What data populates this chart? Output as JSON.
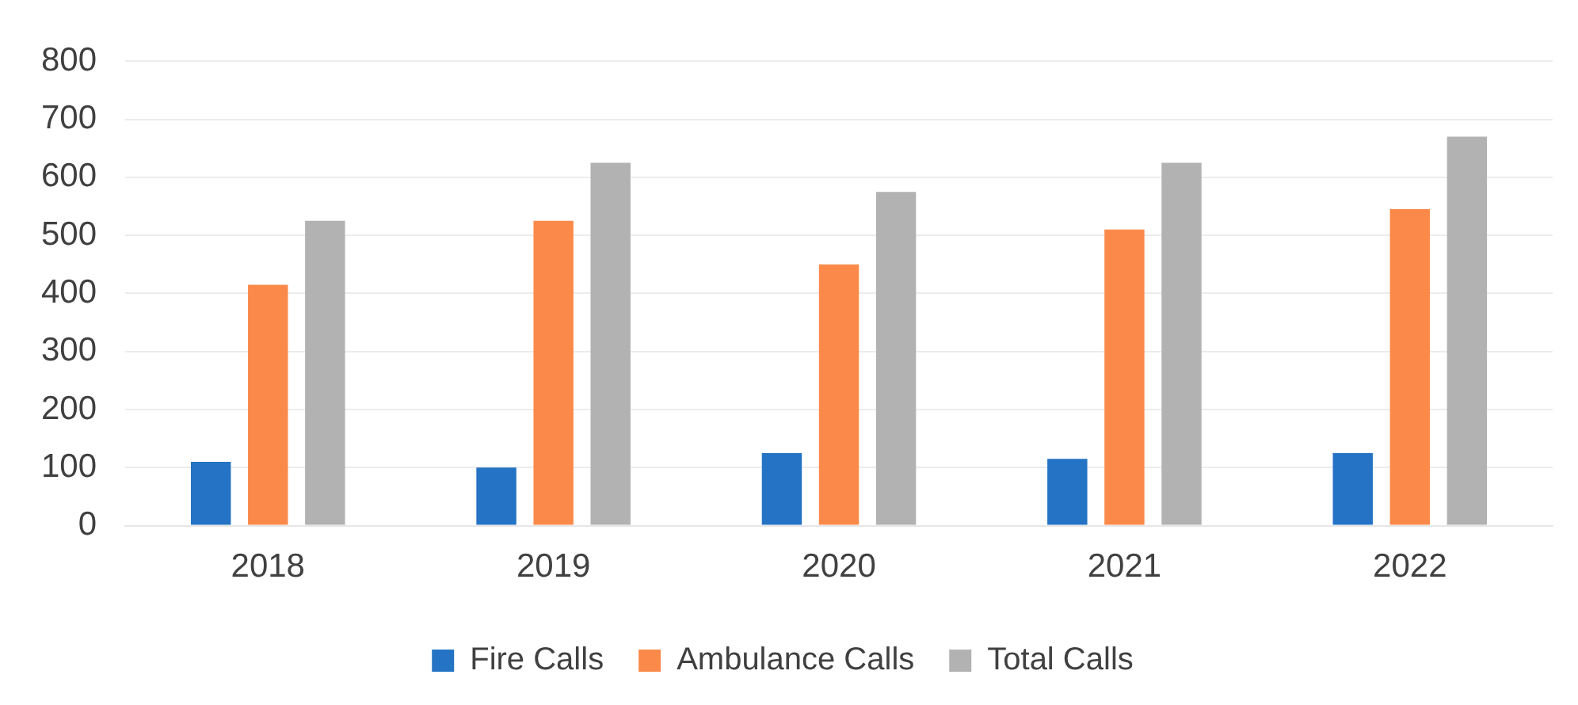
{
  "chart_data": {
    "type": "bar",
    "categories": [
      "2018",
      "2019",
      "2020",
      "2021",
      "2022"
    ],
    "series": [
      {
        "name": "Fire Calls",
        "color": "#2473c4",
        "values": [
          110,
          100,
          125,
          115,
          125
        ]
      },
      {
        "name": "Ambulance Calls",
        "color": "#fb8a4a",
        "values": [
          415,
          525,
          450,
          510,
          545
        ]
      },
      {
        "name": "Total Calls",
        "color": "#b2b2b2",
        "values": [
          525,
          625,
          575,
          625,
          670
        ]
      }
    ],
    "ylim": [
      0,
      800
    ],
    "yticks": [
      0,
      100,
      200,
      300,
      400,
      500,
      600,
      700,
      800
    ],
    "grid": "y",
    "legend": "bottom"
  }
}
